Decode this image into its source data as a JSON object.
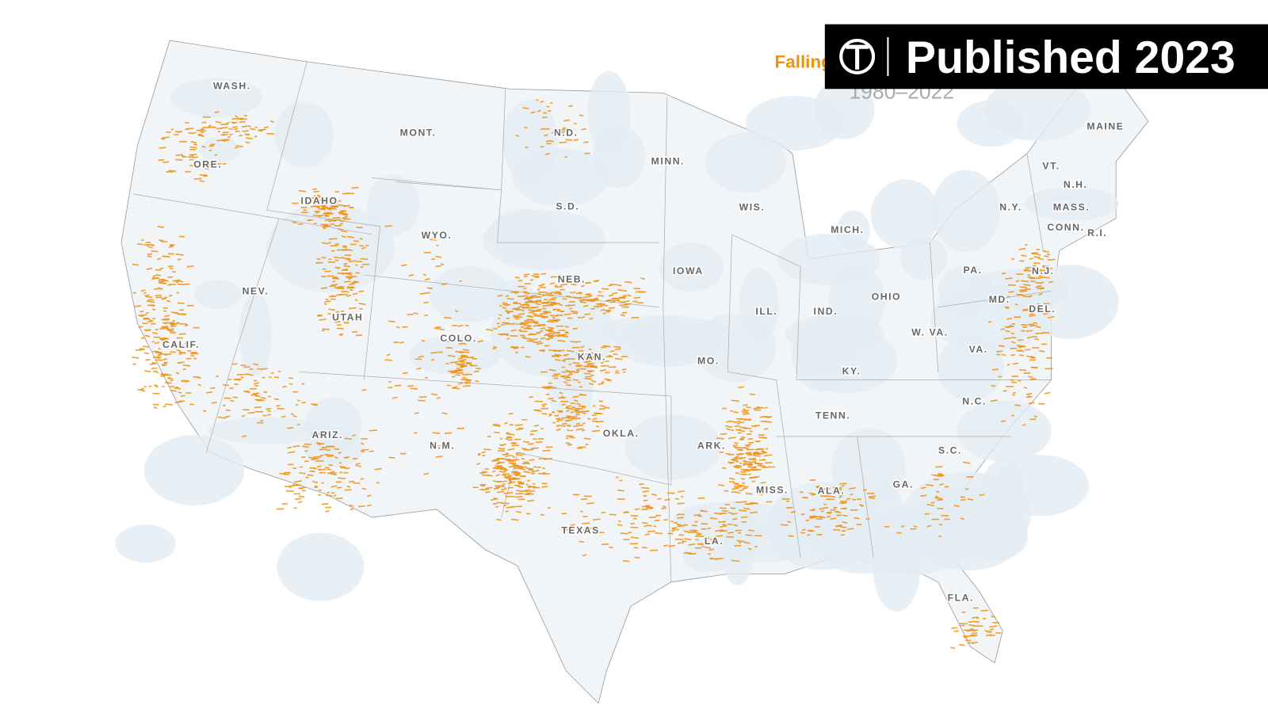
{
  "title": "Falling",
  "subtitle": "1980–2022",
  "badge": "Published 2023",
  "states": [
    "WASH.",
    "MONT.",
    "N.D.",
    "MINN.",
    "MAINE",
    "ORE.",
    "IDAHO",
    "WYO.",
    "S.D.",
    "WIS.",
    "MICH.",
    "VT.",
    "N.H.",
    "N.Y.",
    "MASS.",
    "CONN.",
    "R.I.",
    "NEV.",
    "NEB.",
    "IOWA",
    "PA.",
    "N.J.",
    "UTAH",
    "ILL.",
    "IND.",
    "OHIO",
    "MD.",
    "DEL.",
    "COLO.",
    "W. VA.",
    "CALIF.",
    "KAN.",
    "MO.",
    "KY.",
    "VA.",
    "N.C.",
    "TENN.",
    "ARIZ.",
    "N.M.",
    "OKLA.",
    "ARK.",
    "S.C.",
    "MISS.",
    "ALA.",
    "GA.",
    "TEXAS",
    "LA.",
    "FLA."
  ]
}
